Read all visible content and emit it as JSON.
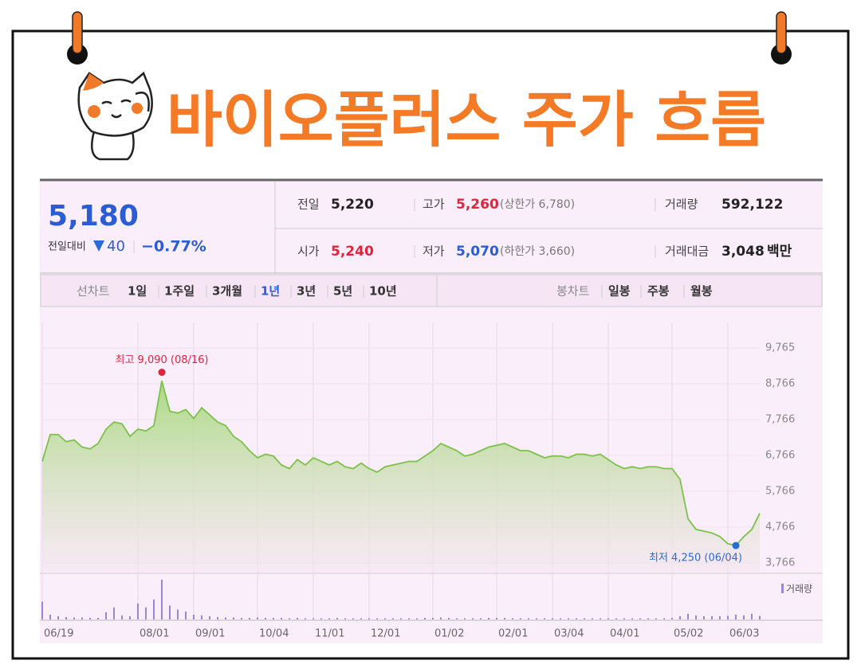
{
  "title": "바이오플러스 주가 흐름",
  "quote": {
    "price": "5,180",
    "change_label": "전일대비",
    "change": "40",
    "change_rate": "−0.77%",
    "rows": [
      [
        {
          "label": "전일",
          "value": "5,220"
        },
        {
          "label": "고가",
          "value": "5,260",
          "note": "(상한가 6,780)"
        },
        {
          "label": "거래량",
          "value": "592,122"
        }
      ],
      [
        {
          "label": "시가",
          "value": "5,240"
        },
        {
          "label": "저가",
          "value": "5,070",
          "note": "(하한가 3,660)"
        },
        {
          "label": "거래대금",
          "value": "3,048",
          "unit": "백만"
        }
      ]
    ]
  },
  "tabs": {
    "line_label": "선차트",
    "line": [
      "1일",
      "1주일",
      "3개월",
      "1년",
      "3년",
      "5년",
      "10년"
    ],
    "candle_label": "봉차트",
    "candle": [
      "일봉",
      "주봉",
      "월봉"
    ]
  },
  "chart_data": [
    {
      "type": "line",
      "categories": [
        "06/19",
        null,
        null,
        null,
        null,
        null,
        null,
        null,
        null,
        null,
        null,
        null,
        "08/01",
        null,
        null,
        null,
        null,
        null,
        null,
        "09/01",
        null,
        null,
        null,
        null,
        null,
        null,
        null,
        "10/04",
        null,
        null,
        null,
        null,
        null,
        null,
        "11/01",
        null,
        null,
        null,
        null,
        null,
        null,
        "12/01",
        null,
        null,
        null,
        null,
        null,
        null,
        null,
        "01/02",
        null,
        null,
        null,
        null,
        null,
        null,
        null,
        "02/01",
        null,
        null,
        null,
        null,
        null,
        null,
        "03/04",
        null,
        null,
        null,
        null,
        null,
        null,
        "04/01",
        null,
        null,
        null,
        null,
        null,
        null,
        null,
        "05/02",
        null,
        null,
        null,
        null,
        null,
        null,
        "06/03",
        null,
        null,
        null,
        null
      ],
      "series": [
        {
          "name": "주가",
          "color": "#7cc24a",
          "values": [
            6600,
            7350,
            7350,
            7150,
            7200,
            7000,
            6950,
            7100,
            7500,
            7700,
            7650,
            7300,
            7500,
            7450,
            7600,
            8850,
            8000,
            7950,
            8050,
            7800,
            8100,
            7900,
            7700,
            7600,
            7300,
            7150,
            6900,
            6700,
            6800,
            6750,
            6500,
            6400,
            6650,
            6500,
            6700,
            6600,
            6500,
            6600,
            6450,
            6400,
            6550,
            6400,
            6300,
            6450,
            6500,
            6550,
            6600,
            6600,
            6750,
            6900,
            7100,
            7000,
            6900,
            6750,
            6800,
            6900,
            7000,
            7050,
            7100,
            7000,
            6900,
            6900,
            6800,
            6700,
            6750,
            6750,
            6700,
            6800,
            6800,
            6750,
            6800,
            6650,
            6500,
            6400,
            6450,
            6400,
            6450,
            6450,
            6400,
            6400,
            6100,
            5000,
            4700,
            4650,
            4600,
            4500,
            4300,
            4250,
            4500,
            4700,
            5150
          ]
        }
      ],
      "ylim": [
        3520,
        10480
      ],
      "yticks": [
        {
          "value": 3766,
          "label": "3,766"
        },
        {
          "value": 4766,
          "label": "4,766"
        },
        {
          "value": 5766,
          "label": "5,766"
        },
        {
          "value": 6766,
          "label": "6,766"
        },
        {
          "value": 7766,
          "label": "7,766"
        },
        {
          "value": 8766,
          "label": "8,766"
        },
        {
          "value": 9765,
          "label": "9,765"
        }
      ],
      "grid": true,
      "annotations": [
        {
          "text": "최고 9,090 (08/16)",
          "value": 9090,
          "color": "#e0243a"
        },
        {
          "text": "최저 4,250 (06/04)",
          "value": 4250,
          "color": "#2a6bd6"
        }
      ]
    },
    {
      "type": "bar",
      "series": [
        {
          "name": "거래량",
          "color": "#9b86d6",
          "values": [
            45,
            12,
            8,
            6,
            5,
            5,
            4,
            4,
            18,
            30,
            10,
            8,
            40,
            30,
            50,
            100,
            35,
            25,
            20,
            12,
            10,
            8,
            6,
            5,
            5,
            4,
            4,
            5,
            4,
            4,
            4,
            3,
            4,
            3,
            3,
            3,
            3,
            4,
            3,
            3,
            3,
            3,
            3,
            3,
            3,
            3,
            3,
            3,
            4,
            4,
            5,
            4,
            3,
            3,
            3,
            3,
            4,
            4,
            4,
            3,
            3,
            3,
            3,
            3,
            3,
            3,
            3,
            3,
            3,
            3,
            3,
            3,
            3,
            3,
            3,
            3,
            3,
            3,
            3,
            4,
            8,
            14,
            10,
            8,
            8,
            8,
            9,
            12,
            10,
            14,
            9
          ]
        }
      ],
      "ylim": [
        0,
        100
      ]
    }
  ]
}
